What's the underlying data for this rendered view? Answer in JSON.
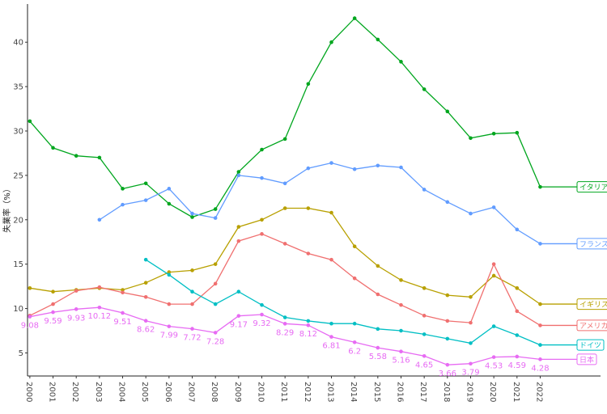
{
  "chart_data": {
    "type": "line",
    "title": "",
    "xlabel": "",
    "ylabel": "失業率（%）",
    "x": [
      2000,
      2001,
      2002,
      2003,
      2004,
      2005,
      2006,
      2007,
      2008,
      2009,
      2010,
      2011,
      2012,
      2013,
      2014,
      2015,
      2016,
      2017,
      2018,
      2019,
      2020,
      2021,
      2022
    ],
    "x_tick_labels": [
      "2000",
      "2001",
      "2002",
      "2003",
      "2004",
      "2005",
      "2006",
      "2007",
      "2008",
      "2009",
      "2010",
      "2011",
      "2012",
      "2013",
      "2014",
      "2015",
      "2016",
      "2017",
      "2018",
      "2019",
      "2020",
      "2021",
      "2022"
    ],
    "y_ticks": [
      5,
      10,
      15,
      20,
      25,
      30,
      35,
      40
    ],
    "y_tick_labels": [
      "5",
      "10",
      "15",
      "20",
      "25",
      "30",
      "35",
      "40"
    ],
    "xlim": [
      1999.9,
      2024.6
    ],
    "ylim": [
      2.4,
      44.3
    ],
    "grid": false,
    "legend": "end-of-line labels",
    "series": [
      {
        "name": "イタリア",
        "color": "#00a61e",
        "values": [
          31.1,
          28.1,
          27.2,
          27.0,
          23.5,
          24.1,
          21.8,
          20.3,
          21.2,
          25.4,
          27.9,
          29.1,
          35.3,
          40.0,
          42.7,
          40.3,
          37.8,
          34.7,
          32.2,
          29.2,
          29.7,
          29.8,
          23.7
        ]
      },
      {
        "name": "フランス",
        "color": "#619cff",
        "values": [
          null,
          null,
          null,
          20.0,
          21.7,
          22.2,
          23.5,
          20.7,
          20.2,
          25.0,
          24.7,
          24.1,
          25.8,
          26.4,
          25.7,
          26.1,
          25.9,
          23.4,
          22.0,
          20.7,
          21.4,
          18.9,
          17.3
        ]
      },
      {
        "name": "イギリス",
        "color": "#b8a000",
        "values": [
          12.3,
          11.9,
          12.1,
          12.3,
          12.1,
          12.9,
          14.1,
          14.3,
          15.0,
          19.2,
          20.0,
          21.3,
          21.3,
          20.8,
          17.0,
          14.8,
          13.2,
          12.3,
          11.5,
          11.3,
          13.7,
          12.3,
          10.5
        ]
      },
      {
        "name": "アメリカ",
        "color": "#f07070",
        "values": [
          9.2,
          10.5,
          12.0,
          12.4,
          11.8,
          11.3,
          10.5,
          10.5,
          12.8,
          17.6,
          18.4,
          17.3,
          16.2,
          15.5,
          13.4,
          11.6,
          10.4,
          9.2,
          8.6,
          8.4,
          15.0,
          9.7,
          8.1
        ]
      },
      {
        "name": "ドイツ",
        "color": "#00bfc4",
        "values": [
          null,
          null,
          null,
          null,
          null,
          15.5,
          13.8,
          11.9,
          10.5,
          11.9,
          10.4,
          9.0,
          8.6,
          8.3,
          8.3,
          7.7,
          7.5,
          7.1,
          6.6,
          6.1,
          8.0,
          7.0,
          5.9
        ]
      },
      {
        "name": "日本",
        "color": "#e76bf3",
        "values": [
          9.08,
          9.59,
          9.93,
          10.12,
          9.51,
          8.62,
          7.99,
          7.72,
          7.28,
          9.17,
          9.32,
          8.29,
          8.12,
          6.81,
          6.2,
          5.58,
          5.16,
          4.65,
          3.66,
          3.79,
          4.53,
          4.59,
          4.28
        ],
        "data_labels": [
          "9.08",
          "9.59",
          "9.93",
          "10.12",
          "9.51",
          "8.62",
          "7.99",
          "7.72",
          "7.28",
          "9.17",
          "9.32",
          "8.29",
          "8.12",
          "6.81",
          "6.2",
          "5.58",
          "5.16",
          "4.65",
          "3.66",
          "3.79",
          "4.53",
          "4.59",
          "4.28"
        ]
      }
    ]
  }
}
